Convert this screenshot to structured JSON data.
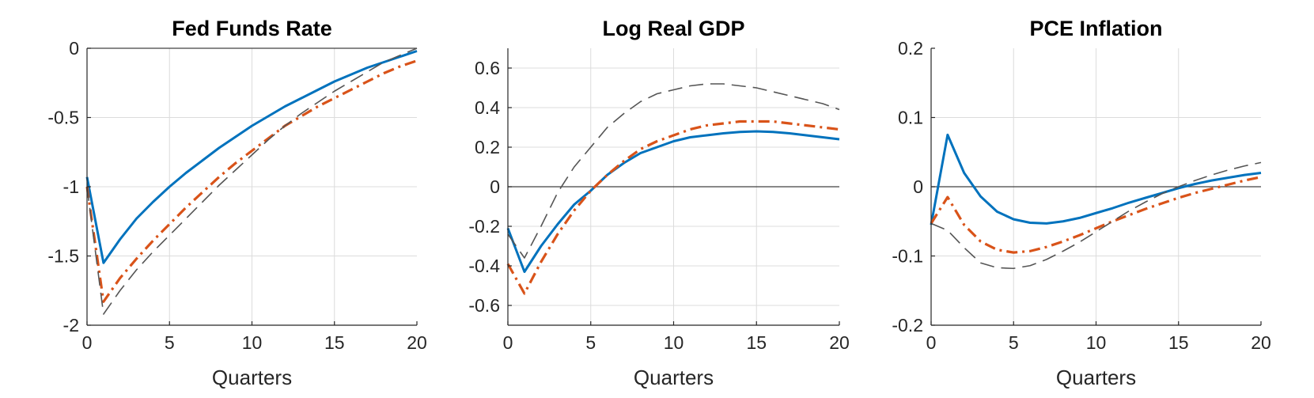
{
  "chart_data": [
    {
      "type": "line",
      "title": "Fed Funds Rate",
      "xlabel": "Quarters",
      "ylabel": "",
      "xlim": [
        0,
        20
      ],
      "ylim": [
        -2,
        0
      ],
      "xticks": [
        0,
        5,
        10,
        15,
        20
      ],
      "yticks": [
        -2,
        -1.5,
        -1,
        -0.5,
        0
      ],
      "ytick_labels": [
        "-2",
        "-1.5",
        "-1",
        "-0.5",
        "0"
      ],
      "grid": true,
      "zero_line": true,
      "x": [
        0,
        1,
        2,
        3,
        4,
        5,
        6,
        7,
        8,
        9,
        10,
        11,
        12,
        13,
        14,
        15,
        16,
        17,
        18,
        19,
        20
      ],
      "series": [
        {
          "color": "#0072BD",
          "style": "solid",
          "values": [
            -0.93,
            -1.55,
            -1.38,
            -1.23,
            -1.11,
            -1.0,
            -0.9,
            -0.81,
            -0.72,
            -0.64,
            -0.56,
            -0.49,
            -0.42,
            -0.36,
            -0.3,
            -0.24,
            -0.19,
            -0.14,
            -0.1,
            -0.06,
            -0.02
          ]
        },
        {
          "color": "#D95319",
          "style": "dashdot",
          "values": [
            -1.0,
            -1.83,
            -1.66,
            -1.52,
            -1.39,
            -1.27,
            -1.15,
            -1.04,
            -0.93,
            -0.83,
            -0.74,
            -0.65,
            -0.56,
            -0.49,
            -0.42,
            -0.36,
            -0.3,
            -0.24,
            -0.18,
            -0.13,
            -0.09
          ]
        },
        {
          "color": "#555555",
          "style": "dashed",
          "values": [
            -1.0,
            -1.92,
            -1.75,
            -1.6,
            -1.47,
            -1.35,
            -1.23,
            -1.11,
            -0.99,
            -0.88,
            -0.77,
            -0.66,
            -0.56,
            -0.47,
            -0.39,
            -0.31,
            -0.24,
            -0.17,
            -0.1,
            -0.05,
            0.0
          ]
        }
      ]
    },
    {
      "type": "line",
      "title": "Log Real GDP",
      "xlabel": "Quarters",
      "ylabel": "",
      "xlim": [
        0,
        20
      ],
      "ylim": [
        -0.7,
        0.7
      ],
      "xticks": [
        0,
        5,
        10,
        15,
        20
      ],
      "yticks": [
        -0.6,
        -0.4,
        -0.2,
        0,
        0.2,
        0.4,
        0.6
      ],
      "ytick_labels": [
        "-0.6",
        "-0.4",
        "-0.2",
        "0",
        "0.2",
        "0.4",
        "0.6"
      ],
      "grid": true,
      "zero_line": true,
      "x": [
        0,
        1,
        2,
        3,
        4,
        5,
        6,
        7,
        8,
        9,
        10,
        11,
        12,
        13,
        14,
        15,
        16,
        17,
        18,
        19,
        20
      ],
      "series": [
        {
          "color": "#0072BD",
          "style": "solid",
          "values": [
            -0.21,
            -0.43,
            -0.3,
            -0.19,
            -0.09,
            -0.02,
            0.06,
            0.12,
            0.17,
            0.2,
            0.23,
            0.25,
            0.26,
            0.27,
            0.277,
            0.28,
            0.277,
            0.27,
            0.26,
            0.25,
            0.24
          ]
        },
        {
          "color": "#D95319",
          "style": "dashdot",
          "values": [
            -0.39,
            -0.54,
            -0.38,
            -0.24,
            -0.12,
            -0.02,
            0.06,
            0.13,
            0.19,
            0.23,
            0.26,
            0.29,
            0.31,
            0.32,
            0.33,
            0.33,
            0.33,
            0.32,
            0.31,
            0.3,
            0.29
          ]
        },
        {
          "color": "#555555",
          "style": "dashed",
          "values": [
            -0.24,
            -0.36,
            -0.2,
            -0.03,
            0.1,
            0.2,
            0.3,
            0.37,
            0.43,
            0.47,
            0.49,
            0.51,
            0.52,
            0.52,
            0.51,
            0.5,
            0.48,
            0.46,
            0.44,
            0.42,
            0.39
          ]
        }
      ]
    },
    {
      "type": "line",
      "title": "PCE Inflation",
      "xlabel": "Quarters",
      "ylabel": "",
      "xlim": [
        0,
        20
      ],
      "ylim": [
        -0.2,
        0.2
      ],
      "xticks": [
        0,
        5,
        10,
        15,
        20
      ],
      "yticks": [
        -0.2,
        -0.1,
        0,
        0.1,
        0.2
      ],
      "ytick_labels": [
        "-0.2",
        "-0.1",
        "0",
        "0.1",
        "0.2"
      ],
      "grid": true,
      "zero_line": true,
      "x": [
        0,
        1,
        2,
        3,
        4,
        5,
        6,
        7,
        8,
        9,
        10,
        11,
        12,
        13,
        14,
        15,
        16,
        17,
        18,
        19,
        20
      ],
      "series": [
        {
          "color": "#0072BD",
          "style": "solid",
          "values": [
            -0.055,
            0.075,
            0.02,
            -0.014,
            -0.036,
            -0.047,
            -0.052,
            -0.053,
            -0.05,
            -0.045,
            -0.038,
            -0.031,
            -0.023,
            -0.016,
            -0.009,
            -0.002,
            0.004,
            0.009,
            0.013,
            0.017,
            0.02
          ]
        },
        {
          "color": "#D95319",
          "style": "dashdot",
          "values": [
            -0.053,
            -0.015,
            -0.055,
            -0.079,
            -0.091,
            -0.095,
            -0.093,
            -0.087,
            -0.079,
            -0.07,
            -0.06,
            -0.05,
            -0.041,
            -0.032,
            -0.024,
            -0.016,
            -0.009,
            -0.003,
            0.003,
            0.009,
            0.014
          ]
        },
        {
          "color": "#555555",
          "style": "dashed",
          "values": [
            -0.053,
            -0.063,
            -0.088,
            -0.11,
            -0.117,
            -0.118,
            -0.114,
            -0.105,
            -0.093,
            -0.08,
            -0.065,
            -0.05,
            -0.035,
            -0.022,
            -0.01,
            0.0,
            0.009,
            0.017,
            0.024,
            0.03,
            0.035
          ]
        }
      ]
    }
  ]
}
